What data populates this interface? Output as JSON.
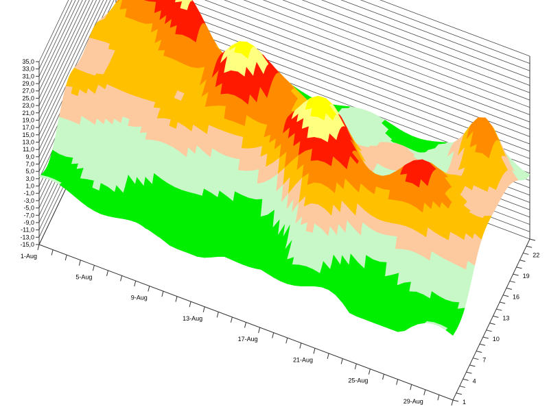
{
  "chart_data": {
    "type": "surface-3d",
    "title": "",
    "z_axis": {
      "ticks": [
        "35,0",
        "33,0",
        "31,0",
        "29,0",
        "27,0",
        "25,0",
        "23,0",
        "21,0",
        "19,0",
        "17,0",
        "15,0",
        "13,0",
        "11,0",
        "9,0",
        "7,0",
        "5,0",
        "3,0",
        "1,0",
        "-1,0",
        "-3,0",
        "-5,0",
        "-7,0",
        "-9,0",
        "-11,0",
        "-13,0",
        "-15,0"
      ],
      "range": [
        -15,
        35
      ]
    },
    "x_axis": {
      "ticks": [
        "1-Aug",
        "5-Aug",
        "9-Aug",
        "13-Aug",
        "17-Aug",
        "21-Aug",
        "25-Aug",
        "29-Aug"
      ],
      "range": [
        "1-Aug",
        "31-Aug"
      ]
    },
    "y_axis": {
      "ticks": [
        "1",
        "4",
        "7",
        "10",
        "13",
        "16",
        "19",
        "22"
      ],
      "range": [
        1,
        24
      ]
    },
    "color_bands": [
      {
        "from": -15,
        "to": 3,
        "color": "#00ee00"
      },
      {
        "from": 3,
        "to": 9,
        "color": "#c8f8c8"
      },
      {
        "from": 9,
        "to": 13,
        "color": "#fdcaa0"
      },
      {
        "from": 13,
        "to": 17,
        "color": "#ffc000"
      },
      {
        "from": 17,
        "to": 21,
        "color": "#ff8c00"
      },
      {
        "from": 21,
        "to": 25,
        "color": "#ff1a00"
      },
      {
        "from": 25,
        "to": 28,
        "color": "#ffff80"
      },
      {
        "from": 28,
        "to": 30,
        "color": "#ffff00"
      },
      {
        "from": 30,
        "to": 33,
        "color": "#f8a0e0"
      },
      {
        "from": 33,
        "to": 35,
        "color": "#ff00ff"
      }
    ],
    "grid": true
  }
}
